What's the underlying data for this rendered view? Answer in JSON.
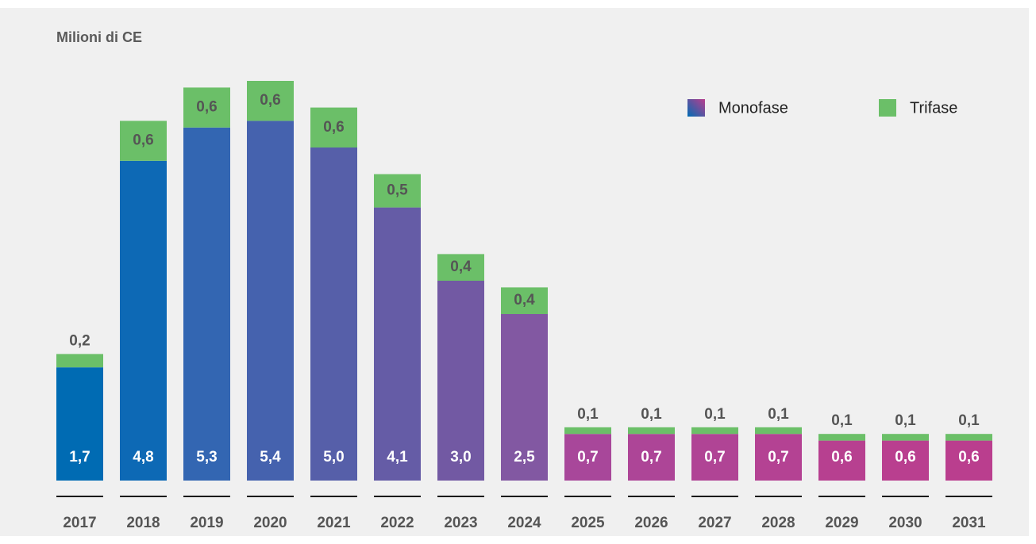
{
  "chart_data": {
    "type": "stacked_bar",
    "title": "Milioni di CE",
    "categories": [
      "2017",
      "2018",
      "2019",
      "2020",
      "2021",
      "2022",
      "2023",
      "2024",
      "2025",
      "2026",
      "2027",
      "2028",
      "2029",
      "2030",
      "2031"
    ],
    "series": [
      {
        "name": "Monofase",
        "colors": [
          "#006bb3",
          "#0d69b5",
          "#3366b2",
          "#4562ae",
          "#565fa9",
          "#655ca6",
          "#7259a3",
          "#8258a2",
          "#a8479a",
          "#ad4597",
          "#b04495",
          "#b44293",
          "#b74090",
          "#b93f8f",
          "#ba3e8e"
        ],
        "values": [
          1.7,
          4.8,
          5.3,
          5.4,
          5.0,
          4.1,
          3.0,
          2.5,
          0.7,
          0.7,
          0.7,
          0.7,
          0.6,
          0.6,
          0.6
        ],
        "value_labels": [
          "1,7",
          "4,8",
          "5,3",
          "5,4",
          "5,0",
          "4,1",
          "3,0",
          "2,5",
          "0,7",
          "0,7",
          "0,7",
          "0,7",
          "0,6",
          "0,6",
          "0,6"
        ]
      },
      {
        "name": "Trifase",
        "color": "#6bbf68",
        "values": [
          0.2,
          0.6,
          0.6,
          0.6,
          0.6,
          0.5,
          0.4,
          0.4,
          0.1,
          0.1,
          0.1,
          0.1,
          0.1,
          0.1,
          0.1
        ],
        "value_labels": [
          "0,2",
          "0,6",
          "0,6",
          "0,6",
          "0,6",
          "0,5",
          "0,4",
          "0,4",
          "0,1",
          "0,1",
          "0,1",
          "0,1",
          "0,1",
          "0,1",
          "0,1"
        ]
      }
    ]
  }
}
